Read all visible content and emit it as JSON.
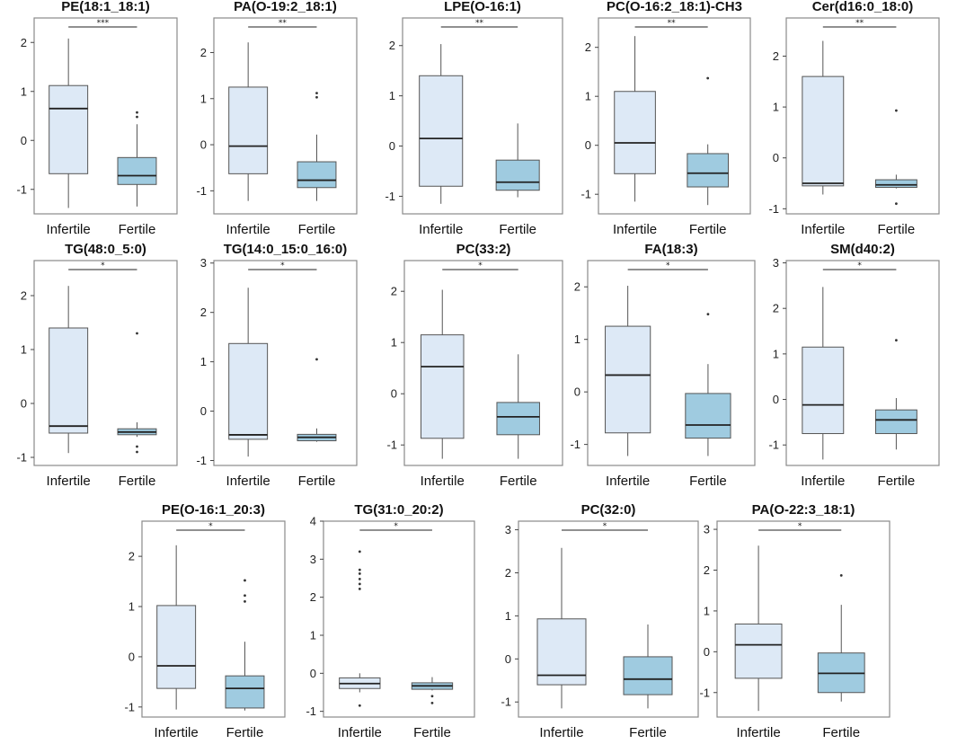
{
  "figure": {
    "groups": [
      "Infertile",
      "Fertile"
    ],
    "colors": {
      "infertile": "#dde9f6",
      "fertile": "#9fcbe0",
      "frame": "#8a8a8a",
      "stroke": "#555555"
    }
  },
  "chart_data": [
    {
      "type": "box",
      "title": "PE(18:1_18:1)",
      "significance": "***",
      "ylim": [
        -1.5,
        2.5
      ],
      "yticks": [
        -1,
        0,
        1,
        2
      ],
      "boxes": [
        {
          "name": "Infertile",
          "whisker_low": -1.38,
          "q1": -0.68,
          "median": 0.65,
          "q3": 1.12,
          "whisker_high": 2.08,
          "outliers": []
        },
        {
          "name": "Fertile",
          "whisker_low": -1.35,
          "q1": -0.9,
          "median": -0.72,
          "q3": -0.35,
          "whisker_high": 0.33,
          "outliers": [
            0.48,
            0.57
          ]
        }
      ]
    },
    {
      "type": "box",
      "title": "PA(O-19:2_18:1)",
      "significance": "**",
      "ylim": [
        -1.5,
        2.75
      ],
      "yticks": [
        -1,
        0,
        1,
        2
      ],
      "boxes": [
        {
          "name": "Infertile",
          "whisker_low": -1.22,
          "q1": -0.63,
          "median": -0.03,
          "q3": 1.25,
          "whisker_high": 2.22,
          "outliers": []
        },
        {
          "name": "Fertile",
          "whisker_low": -1.22,
          "q1": -0.93,
          "median": -0.77,
          "q3": -0.37,
          "whisker_high": 0.22,
          "outliers": [
            1.03,
            1.12
          ]
        }
      ]
    },
    {
      "type": "box",
      "title": "LPE(O-16:1)",
      "significance": "**",
      "ylim": [
        -1.35,
        2.55
      ],
      "yticks": [
        -1,
        0,
        1,
        2
      ],
      "boxes": [
        {
          "name": "Infertile",
          "whisker_low": -1.15,
          "q1": -0.8,
          "median": 0.15,
          "q3": 1.4,
          "whisker_high": 2.03,
          "outliers": []
        },
        {
          "name": "Fertile",
          "whisker_low": -1.02,
          "q1": -0.88,
          "median": -0.72,
          "q3": -0.28,
          "whisker_high": 0.45,
          "outliers": []
        }
      ]
    },
    {
      "type": "box",
      "title": "PC(O-16:2_18:1)-CH3",
      "significance": "**",
      "ylim": [
        -1.4,
        2.6
      ],
      "yticks": [
        -1,
        0,
        1,
        2
      ],
      "boxes": [
        {
          "name": "Infertile",
          "whisker_low": -1.15,
          "q1": -0.58,
          "median": 0.05,
          "q3": 1.1,
          "whisker_high": 2.23,
          "outliers": []
        },
        {
          "name": "Fertile",
          "whisker_low": -1.22,
          "q1": -0.85,
          "median": -0.57,
          "q3": -0.17,
          "whisker_high": 0.02,
          "outliers": [
            1.37
          ]
        }
      ]
    },
    {
      "type": "box",
      "title": "Cer(d16:0_18:0)",
      "significance": "**",
      "ylim": [
        -1.1,
        2.75
      ],
      "yticks": [
        -1,
        0,
        1,
        2
      ],
      "boxes": [
        {
          "name": "Infertile",
          "whisker_low": -0.72,
          "q1": -0.55,
          "median": -0.5,
          "q3": 1.6,
          "whisker_high": 2.3,
          "outliers": []
        },
        {
          "name": "Fertile",
          "whisker_low": -0.6,
          "q1": -0.58,
          "median": -0.53,
          "q3": -0.43,
          "whisker_high": -0.33,
          "outliers": [
            0.93,
            -0.9
          ]
        }
      ]
    },
    {
      "type": "box",
      "title": "TG(48:0_5:0)",
      "significance": "*",
      "ylim": [
        -1.15,
        2.65
      ],
      "yticks": [
        -1,
        0,
        1,
        2
      ],
      "boxes": [
        {
          "name": "Infertile",
          "whisker_low": -0.92,
          "q1": -0.55,
          "median": -0.42,
          "q3": 1.4,
          "whisker_high": 2.18,
          "outliers": []
        },
        {
          "name": "Fertile",
          "whisker_low": -0.62,
          "q1": -0.58,
          "median": -0.53,
          "q3": -0.47,
          "whisker_high": -0.35,
          "outliers": [
            1.3,
            -0.8,
            -0.9
          ]
        }
      ]
    },
    {
      "type": "box",
      "title": "TG(14:0_15:0_16:0)",
      "significance": "*",
      "ylim": [
        -1.1,
        3.05
      ],
      "yticks": [
        -1,
        0,
        1,
        2,
        3
      ],
      "boxes": [
        {
          "name": "Infertile",
          "whisker_low": -0.92,
          "q1": -0.57,
          "median": -0.48,
          "q3": 1.37,
          "whisker_high": 2.5,
          "outliers": []
        },
        {
          "name": "Fertile",
          "whisker_low": -0.62,
          "q1": -0.6,
          "median": -0.53,
          "q3": -0.47,
          "whisker_high": -0.35,
          "outliers": [
            1.05
          ]
        }
      ]
    },
    {
      "type": "box",
      "title": "PC(33:2)",
      "significance": "*",
      "ylim": [
        -1.4,
        2.6
      ],
      "yticks": [
        -1,
        0,
        1,
        2
      ],
      "boxes": [
        {
          "name": "Infertile",
          "whisker_low": -1.27,
          "q1": -0.87,
          "median": 0.53,
          "q3": 1.15,
          "whisker_high": 2.03,
          "outliers": []
        },
        {
          "name": "Fertile",
          "whisker_low": -1.27,
          "q1": -0.8,
          "median": -0.45,
          "q3": -0.17,
          "whisker_high": 0.77,
          "outliers": []
        }
      ]
    },
    {
      "type": "box",
      "title": "FA(18:3)",
      "significance": "*",
      "ylim": [
        -1.4,
        2.5
      ],
      "yticks": [
        -1,
        0,
        1,
        2
      ],
      "boxes": [
        {
          "name": "Infertile",
          "whisker_low": -1.22,
          "q1": -0.78,
          "median": 0.32,
          "q3": 1.25,
          "whisker_high": 2.02,
          "outliers": []
        },
        {
          "name": "Fertile",
          "whisker_low": -1.22,
          "q1": -0.88,
          "median": -0.63,
          "q3": -0.03,
          "whisker_high": 0.53,
          "outliers": [
            1.48
          ]
        }
      ]
    },
    {
      "type": "box",
      "title": "SM(d40:2)",
      "significance": "*",
      "ylim": [
        -1.45,
        3.05
      ],
      "yticks": [
        -1,
        0,
        1,
        2,
        3
      ],
      "boxes": [
        {
          "name": "Infertile",
          "whisker_low": -1.32,
          "q1": -0.75,
          "median": -0.12,
          "q3": 1.15,
          "whisker_high": 2.47,
          "outliers": []
        },
        {
          "name": "Fertile",
          "whisker_low": -1.1,
          "q1": -0.75,
          "median": -0.45,
          "q3": -0.23,
          "whisker_high": 0.03,
          "outliers": [
            1.3
          ]
        }
      ]
    },
    {
      "type": "box",
      "title": "PE(O-16:1_20:3)",
      "significance": "*",
      "ylim": [
        -1.2,
        2.7
      ],
      "yticks": [
        -1,
        0,
        1,
        2
      ],
      "boxes": [
        {
          "name": "Infertile",
          "whisker_low": -1.05,
          "q1": -0.63,
          "median": -0.18,
          "q3": 1.02,
          "whisker_high": 2.22,
          "outliers": []
        },
        {
          "name": "Fertile",
          "whisker_low": -1.07,
          "q1": -1.02,
          "median": -0.63,
          "q3": -0.38,
          "whisker_high": 0.3,
          "outliers": [
            1.1,
            1.22,
            1.52
          ]
        }
      ]
    },
    {
      "type": "box",
      "title": "TG(31:0_20:2)",
      "significance": "*",
      "ylim": [
        -1.15,
        4.0
      ],
      "yticks": [
        -1,
        0,
        1,
        2,
        3,
        4
      ],
      "boxes": [
        {
          "name": "Infertile",
          "whisker_low": -0.5,
          "q1": -0.4,
          "median": -0.27,
          "q3": -0.12,
          "whisker_high": 0.0,
          "outliers": [
            2.22,
            2.35,
            2.48,
            2.62,
            2.72,
            3.2,
            -0.85
          ]
        },
        {
          "name": "Fertile",
          "whisker_low": -0.45,
          "q1": -0.42,
          "median": -0.33,
          "q3": -0.25,
          "whisker_high": -0.1,
          "outliers": [
            -0.6,
            -0.78
          ]
        }
      ]
    },
    {
      "type": "box",
      "title": "PC(32:0)",
      "significance": "*",
      "ylim": [
        -1.35,
        3.2
      ],
      "yticks": [
        -1,
        0,
        1,
        2,
        3
      ],
      "boxes": [
        {
          "name": "Infertile",
          "whisker_low": -1.15,
          "q1": -0.6,
          "median": -0.38,
          "q3": 0.93,
          "whisker_high": 2.58,
          "outliers": []
        },
        {
          "name": "Fertile",
          "whisker_low": -1.15,
          "q1": -0.83,
          "median": -0.47,
          "q3": 0.05,
          "whisker_high": 0.8,
          "outliers": []
        }
      ]
    },
    {
      "type": "box",
      "title": "PA(O-22:3_18:1)",
      "significance": "*",
      "ylim": [
        -1.6,
        3.2
      ],
      "yticks": [
        -1,
        0,
        1,
        2,
        3
      ],
      "boxes": [
        {
          "name": "Infertile",
          "whisker_low": -1.45,
          "q1": -0.65,
          "median": 0.17,
          "q3": 0.68,
          "whisker_high": 2.6,
          "outliers": []
        },
        {
          "name": "Fertile",
          "whisker_low": -1.22,
          "q1": -1.0,
          "median": -0.53,
          "q3": -0.03,
          "whisker_high": 1.15,
          "outliers": [
            1.87
          ]
        }
      ]
    }
  ]
}
